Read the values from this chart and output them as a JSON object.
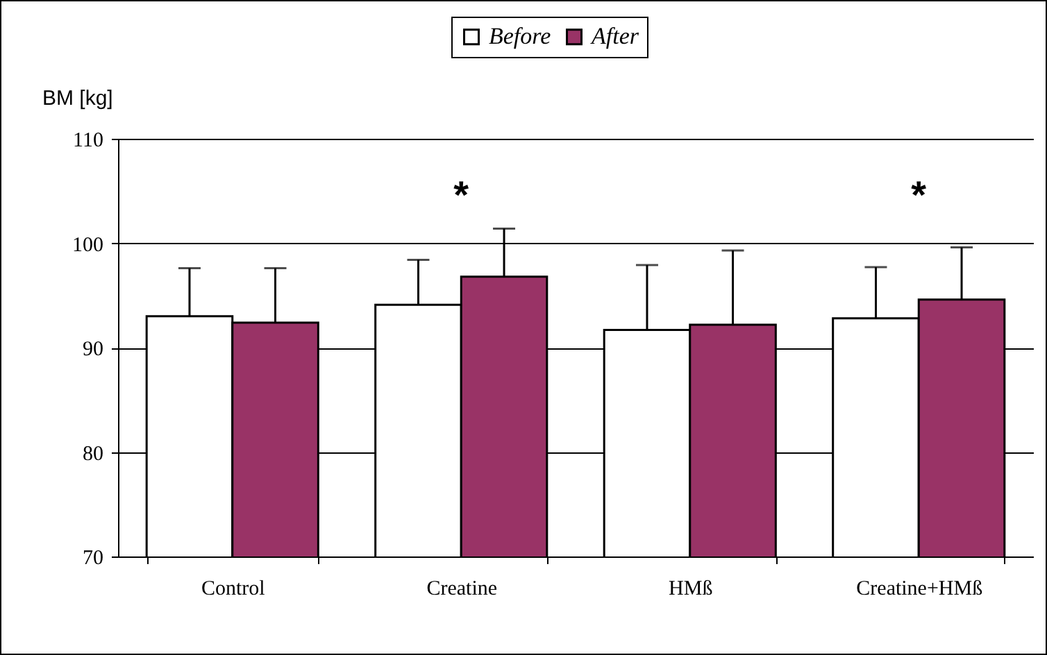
{
  "chart_data": {
    "type": "bar",
    "ylabel": "BM [kg]",
    "categories": [
      "Control",
      "Creatine",
      "HMß",
      "Creatine+HMß"
    ],
    "series": [
      {
        "name": "Before",
        "color": "#ffffff",
        "values": [
          93.0,
          94.1,
          91.7,
          92.8
        ],
        "errors": [
          [
            93.0,
            97.6
          ],
          [
            94.1,
            98.4
          ],
          [
            91.7,
            97.9
          ],
          [
            92.8,
            97.7
          ]
        ]
      },
      {
        "name": "After",
        "color": "#993366",
        "values": [
          92.4,
          96.8,
          92.2,
          94.6
        ],
        "errors": [
          [
            92.4,
            97.6
          ],
          [
            96.8,
            101.4
          ],
          [
            92.2,
            99.3
          ],
          [
            94.6,
            99.6
          ]
        ]
      }
    ],
    "ylim": [
      70,
      110
    ],
    "yticks": [
      70,
      80,
      90,
      100,
      110
    ],
    "grid": "y",
    "legend": "top",
    "annotations": [
      "*",
      "*"
    ]
  }
}
